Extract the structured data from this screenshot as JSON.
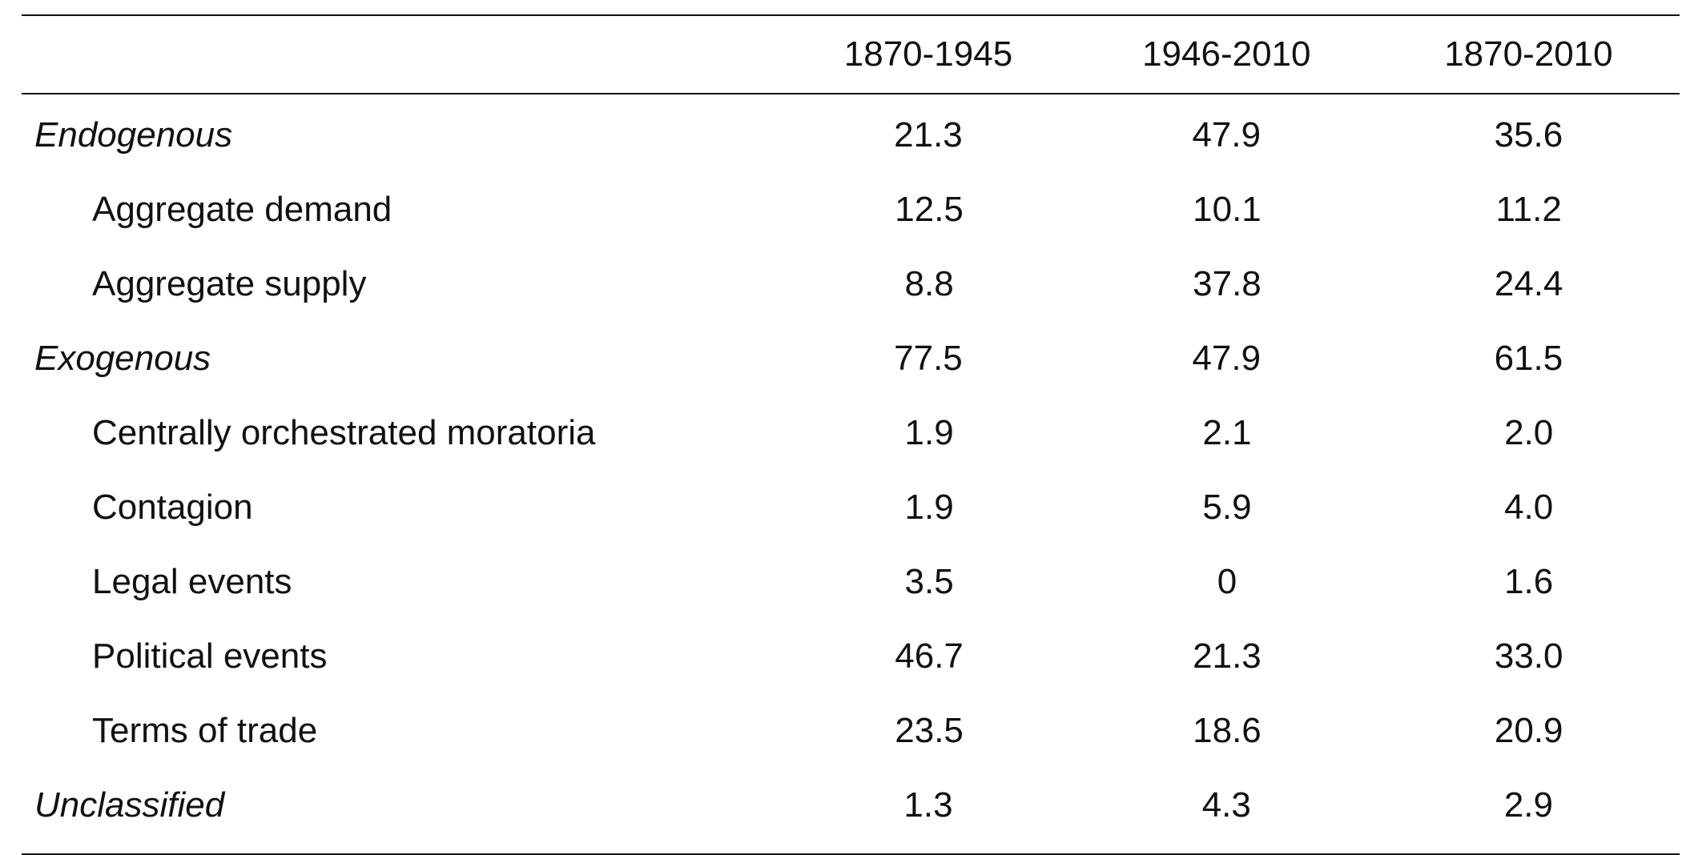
{
  "table": {
    "columns": [
      "",
      "1870-1945",
      "1946-2010",
      "1870-2010"
    ],
    "rows": [
      {
        "label": "Endogenous",
        "values": [
          "21.3",
          "47.9",
          "35.6"
        ],
        "style": "group"
      },
      {
        "label": "Aggregate demand",
        "values": [
          "12.5",
          "10.1",
          "11.2"
        ],
        "style": "sub"
      },
      {
        "label": "Aggregate supply",
        "values": [
          "8.8",
          "37.8",
          "24.4"
        ],
        "style": "sub"
      },
      {
        "label": "Exogenous",
        "values": [
          "77.5",
          "47.9",
          "61.5"
        ],
        "style": "group"
      },
      {
        "label": "Centrally orchestrated moratoria",
        "values": [
          "1.9",
          "2.1",
          "2.0"
        ],
        "style": "sub"
      },
      {
        "label": "Contagion",
        "values": [
          "1.9",
          "5.9",
          "4.0"
        ],
        "style": "sub"
      },
      {
        "label": "Legal events",
        "values": [
          "3.5",
          "0",
          "1.6"
        ],
        "style": "sub"
      },
      {
        "label": "Political events",
        "values": [
          "46.7",
          "21.3",
          "33.0"
        ],
        "style": "sub"
      },
      {
        "label": "Terms of trade",
        "values": [
          "23.5",
          "18.6",
          "20.9"
        ],
        "style": "sub"
      },
      {
        "label": "Unclassified",
        "values": [
          "1.3",
          "4.3",
          "2.9"
        ],
        "style": "group"
      }
    ]
  },
  "chart_data": {
    "type": "table",
    "columns": [
      "1870-1945",
      "1946-2010",
      "1870-2010"
    ],
    "rows": [
      {
        "label": "Endogenous",
        "values": [
          21.3,
          47.9,
          35.6
        ]
      },
      {
        "label": "Aggregate demand",
        "values": [
          12.5,
          10.1,
          11.2
        ]
      },
      {
        "label": "Aggregate supply",
        "values": [
          8.8,
          37.8,
          24.4
        ]
      },
      {
        "label": "Exogenous",
        "values": [
          77.5,
          47.9,
          61.5
        ]
      },
      {
        "label": "Centrally orchestrated moratoria",
        "values": [
          1.9,
          2.1,
          2.0
        ]
      },
      {
        "label": "Contagion",
        "values": [
          1.9,
          5.9,
          4.0
        ]
      },
      {
        "label": "Legal events",
        "values": [
          3.5,
          0,
          1.6
        ]
      },
      {
        "label": "Political events",
        "values": [
          46.7,
          21.3,
          33.0
        ]
      },
      {
        "label": "Terms of trade",
        "values": [
          23.5,
          18.6,
          20.9
        ]
      },
      {
        "label": "Unclassified",
        "values": [
          1.3,
          4.3,
          2.9
        ]
      }
    ]
  }
}
